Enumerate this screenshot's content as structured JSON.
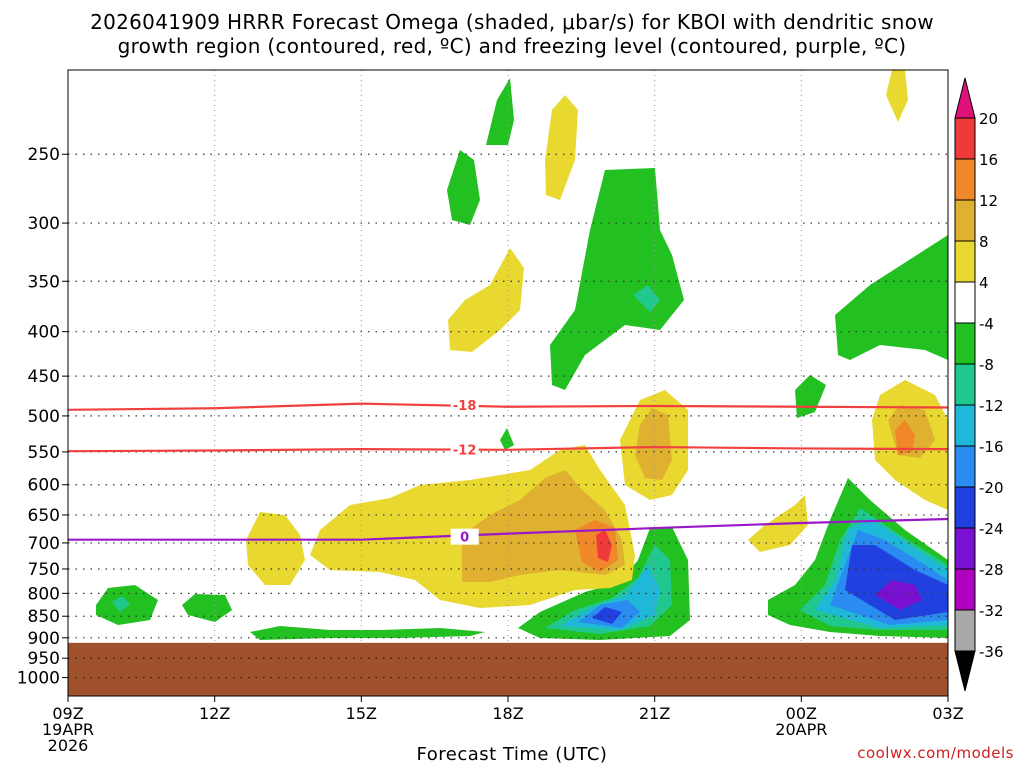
{
  "title": {
    "line1": "2026041909 HRRR Forecast Omega (shaded, μbar/s) for KBOI with dendritic snow",
    "line2": "growth region (contoured, red, ºC) and freezing level (contoured, purple, ºC)"
  },
  "credit": "coolwx.com/models",
  "chart_data": {
    "type": "contour",
    "xlabel": "Forecast Time (UTC)",
    "ylabel": "",
    "x_ticks": [
      {
        "hour": 0,
        "lines": [
          "09Z",
          "19APR",
          "2026"
        ]
      },
      {
        "hour": 3,
        "lines": [
          "12Z"
        ]
      },
      {
        "hour": 6,
        "lines": [
          "15Z"
        ]
      },
      {
        "hour": 9,
        "lines": [
          "18Z"
        ]
      },
      {
        "hour": 12,
        "lines": [
          "21Z"
        ]
      },
      {
        "hour": 15,
        "lines": [
          "00Z",
          "20APR"
        ]
      },
      {
        "hour": 18,
        "lines": [
          "03Z"
        ]
      }
    ],
    "xlim": [
      0,
      18
    ],
    "y_ticks": [
      250,
      300,
      350,
      400,
      450,
      500,
      550,
      600,
      650,
      700,
      750,
      800,
      850,
      900,
      950,
      1000
    ],
    "ylim": [
      1050,
      200
    ],
    "y_scale": "log-pressure (inverted)",
    "grid": true,
    "colorbar": {
      "levels": [
        20,
        16,
        12,
        8,
        4,
        -4,
        -8,
        -12,
        -16,
        -20,
        -24,
        -28,
        -32,
        -36
      ],
      "colors": [
        "#dd1177",
        "#f03a3a",
        "#f0882a",
        "#e0b030",
        "#e8d830",
        "#ffffff",
        "#22c020",
        "#20c890",
        "#20b8d8",
        "#2a8cf0",
        "#2040e0",
        "#7a10d0",
        "#b000c0",
        "#a8a8a8",
        "#000000"
      ]
    },
    "terrain": {
      "pressure_top": 912,
      "color": "#a0522d"
    },
    "contours": [
      {
        "label": "-18",
        "color": "#f04040",
        "points": [
          [
            0,
            492
          ],
          [
            3,
            490
          ],
          [
            6,
            484
          ],
          [
            9,
            488
          ],
          [
            12,
            487
          ],
          [
            15,
            488
          ],
          [
            18,
            489
          ]
        ]
      },
      {
        "label": "-12",
        "color": "#f04040",
        "points": [
          [
            0,
            549
          ],
          [
            3,
            548
          ],
          [
            6,
            546
          ],
          [
            9,
            547
          ],
          [
            12,
            543
          ],
          [
            15,
            545
          ],
          [
            18,
            546
          ]
        ]
      },
      {
        "label": "0",
        "color": "#9a18c8",
        "points": [
          [
            0,
            694
          ],
          [
            3,
            694
          ],
          [
            6,
            694
          ],
          [
            9,
            683
          ],
          [
            12,
            673
          ],
          [
            15,
            664
          ],
          [
            18,
            657
          ]
        ]
      }
    ]
  }
}
